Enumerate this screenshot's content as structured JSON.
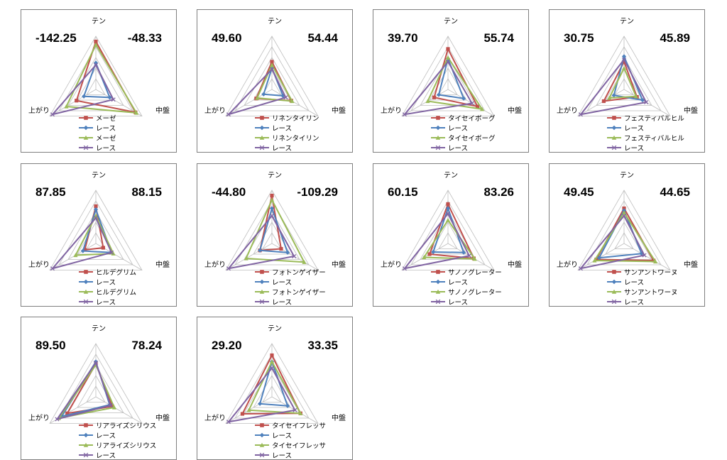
{
  "axes": [
    "テン",
    "中盤",
    "上がり"
  ],
  "colors": {
    "red": "#c0504d",
    "blue": "#4f81bd",
    "green": "#9bbb59",
    "purple": "#8064a2"
  },
  "chart_data": [
    {
      "type": "radar",
      "left_value": "-142.25",
      "right_value": "-48.33",
      "series": [
        {
          "name": "メーゼ",
          "color": "#c0504d",
          "marker": "square",
          "values": [
            4.5,
            4.3,
            2.1
          ]
        },
        {
          "name": "レース",
          "color": "#4f81bd",
          "marker": "diamond",
          "values": [
            2.5,
            1.5,
            1.3
          ]
        },
        {
          "name": "メーゼ",
          "color": "#9bbb59",
          "marker": "triangle",
          "values": [
            4.2,
            4.4,
            3.2
          ]
        },
        {
          "name": "レース",
          "color": "#8064a2",
          "marker": "x",
          "values": [
            2.3,
            1.9,
            4.7
          ]
        }
      ]
    },
    {
      "type": "radar",
      "left_value": "49.60",
      "right_value": "54.44",
      "series": [
        {
          "name": "リネンタイリン",
          "color": "#c0504d",
          "marker": "square",
          "values": [
            2.6,
            2.1,
            1.7
          ]
        },
        {
          "name": "レース",
          "color": "#4f81bd",
          "marker": "diamond",
          "values": [
            2.0,
            1.2,
            0.9
          ]
        },
        {
          "name": "リネンタイリン",
          "color": "#9bbb59",
          "marker": "triangle",
          "values": [
            2.3,
            2.2,
            1.6
          ]
        },
        {
          "name": "レース",
          "color": "#8064a2",
          "marker": "x",
          "values": [
            1.9,
            1.5,
            4.7
          ]
        }
      ]
    },
    {
      "type": "radar",
      "left_value": "39.70",
      "right_value": "55.74",
      "series": [
        {
          "name": "タイセイボーグ",
          "color": "#c0504d",
          "marker": "square",
          "values": [
            3.8,
            3.2,
            1.5
          ]
        },
        {
          "name": "レース",
          "color": "#4f81bd",
          "marker": "diamond",
          "values": [
            2.9,
            1.7,
            1.0
          ]
        },
        {
          "name": "タイセイボーグ",
          "color": "#9bbb59",
          "marker": "triangle",
          "values": [
            3.0,
            3.7,
            2.2
          ]
        },
        {
          "name": "レース",
          "color": "#8064a2",
          "marker": "x",
          "values": [
            2.6,
            2.6,
            4.7
          ]
        }
      ]
    },
    {
      "type": "radar",
      "left_value": "30.75",
      "right_value": "45.89",
      "series": [
        {
          "name": "フェスティバルヒル",
          "color": "#c0504d",
          "marker": "square",
          "values": [
            2.6,
            1.4,
            2.2
          ]
        },
        {
          "name": "レース",
          "color": "#4f81bd",
          "marker": "diamond",
          "values": [
            3.1,
            2.0,
            1.1
          ]
        },
        {
          "name": "フェスティバルヒル",
          "color": "#9bbb59",
          "marker": "triangle",
          "values": [
            2.0,
            1.3,
            1.6
          ]
        },
        {
          "name": "レース",
          "color": "#8064a2",
          "marker": "x",
          "values": [
            2.8,
            2.4,
            4.7
          ]
        }
      ]
    },
    {
      "type": "radar",
      "left_value": "87.85",
      "right_value": "88.15",
      "series": [
        {
          "name": "ヒルデグリム",
          "color": "#c0504d",
          "marker": "square",
          "values": [
            3.5,
            0.8,
            1.2
          ]
        },
        {
          "name": "レース",
          "color": "#4f81bd",
          "marker": "diamond",
          "values": [
            3.2,
            1.7,
            1.4
          ]
        },
        {
          "name": "ヒルデグリム",
          "color": "#9bbb59",
          "marker": "triangle",
          "values": [
            2.6,
            1.9,
            2.2
          ]
        },
        {
          "name": "レース",
          "color": "#8064a2",
          "marker": "x",
          "values": [
            2.4,
            1.7,
            4.7
          ]
        }
      ]
    },
    {
      "type": "radar",
      "left_value": "-44.80",
      "right_value": "-109.29",
      "series": [
        {
          "name": "フォトンゲイザー",
          "color": "#c0504d",
          "marker": "square",
          "values": [
            4.5,
            1.0,
            1.3
          ]
        },
        {
          "name": "レース",
          "color": "#4f81bd",
          "marker": "diamond",
          "values": [
            3.3,
            1.7,
            1.3
          ]
        },
        {
          "name": "フォトンゲイザー",
          "color": "#9bbb59",
          "marker": "triangle",
          "values": [
            4.1,
            3.5,
            2.8
          ]
        },
        {
          "name": "レース",
          "color": "#8064a2",
          "marker": "x",
          "values": [
            2.6,
            2.4,
            4.7
          ]
        }
      ]
    },
    {
      "type": "radar",
      "left_value": "60.15",
      "right_value": "83.26",
      "series": [
        {
          "name": "サノノグレーター",
          "color": "#c0504d",
          "marker": "square",
          "values": [
            3.7,
            2.8,
            2.0
          ]
        },
        {
          "name": "レース",
          "color": "#4f81bd",
          "marker": "diamond",
          "values": [
            3.3,
            1.7,
            1.6
          ]
        },
        {
          "name": "サノノグレーター",
          "color": "#9bbb59",
          "marker": "triangle",
          "values": [
            2.2,
            2.9,
            2.6
          ]
        },
        {
          "name": "レース",
          "color": "#8064a2",
          "marker": "x",
          "values": [
            2.8,
            2.3,
            4.7
          ]
        }
      ]
    },
    {
      "type": "radar",
      "left_value": "49.45",
      "right_value": "44.65",
      "series": [
        {
          "name": "サンアントワーヌ",
          "color": "#c0504d",
          "marker": "square",
          "values": [
            3.3,
            3.2,
            3.0
          ]
        },
        {
          "name": "レース",
          "color": "#4f81bd",
          "marker": "diamond",
          "values": [
            3.1,
            1.9,
            2.7
          ]
        },
        {
          "name": "サンアントワーヌ",
          "color": "#9bbb59",
          "marker": "triangle",
          "values": [
            2.9,
            3.4,
            3.2
          ]
        },
        {
          "name": "レース",
          "color": "#8064a2",
          "marker": "x",
          "values": [
            2.6,
            2.2,
            4.7
          ]
        }
      ]
    },
    {
      "type": "radar",
      "left_value": "89.50",
      "right_value": "78.24",
      "series": [
        {
          "name": "リアライズシリウス",
          "color": "#c0504d",
          "marker": "square",
          "values": [
            3.1,
            1.8,
            3.1
          ]
        },
        {
          "name": "レース",
          "color": "#4f81bd",
          "marker": "diamond",
          "values": [
            3.3,
            1.5,
            3.7
          ]
        },
        {
          "name": "リアライズシリウス",
          "color": "#9bbb59",
          "marker": "triangle",
          "values": [
            3.0,
            2.0,
            4.0
          ]
        },
        {
          "name": "レース",
          "color": "#8064a2",
          "marker": "x",
          "values": [
            3.2,
            1.6,
            4.2
          ]
        }
      ]
    },
    {
      "type": "radar",
      "left_value": "29.20",
      "right_value": "33.35",
      "series": [
        {
          "name": "タイセイフレッサ",
          "color": "#c0504d",
          "marker": "square",
          "values": [
            3.9,
            3.1,
            3.2
          ]
        },
        {
          "name": "レース",
          "color": "#4f81bd",
          "marker": "diamond",
          "values": [
            3.3,
            1.7,
            1.3
          ]
        },
        {
          "name": "タイセイフレッサ",
          "color": "#9bbb59",
          "marker": "triangle",
          "values": [
            3.3,
            3.1,
            2.5
          ]
        },
        {
          "name": "レース",
          "color": "#8064a2",
          "marker": "x",
          "values": [
            2.7,
            2.5,
            4.7
          ]
        }
      ]
    }
  ]
}
